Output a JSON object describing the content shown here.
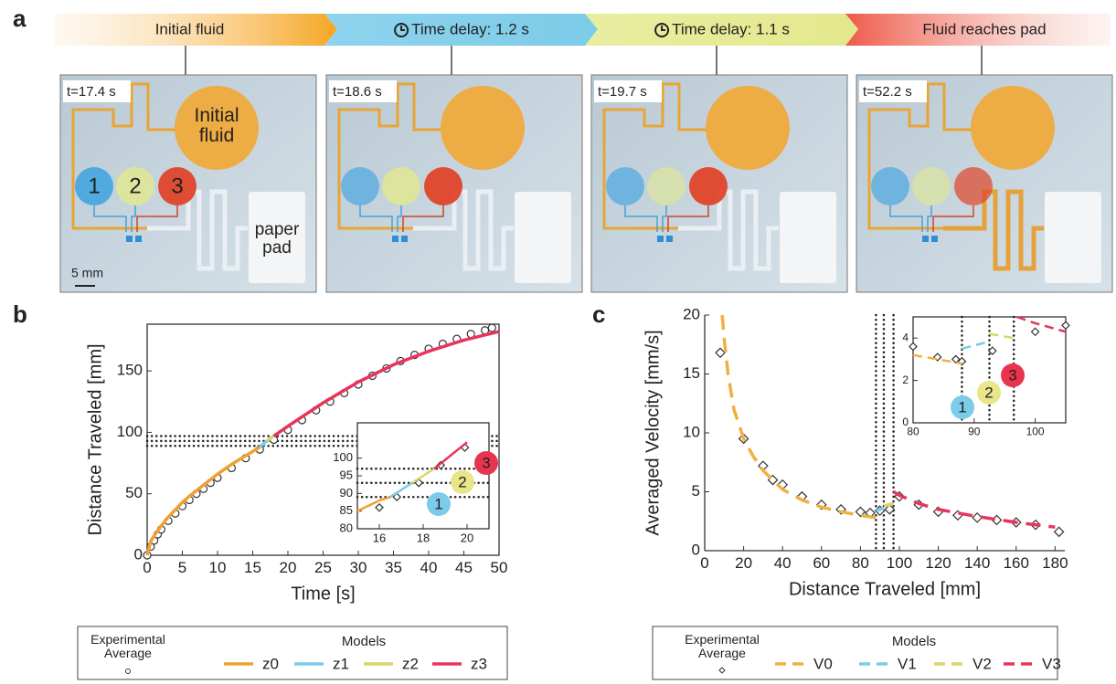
{
  "panel_labels": [
    "a",
    "b",
    "c"
  ],
  "timeline": [
    "Initial fluid",
    "Time delay: 1.2 s",
    "Time delay: 1.1 s",
    "Fluid reaches pad"
  ],
  "photos": {
    "times": [
      "t=17.4 s",
      "t=18.6 s",
      "t=19.7 s",
      "t=52.2 s"
    ],
    "reservoir_label": "Initial fluid",
    "well_labels": [
      "1",
      "2",
      "3"
    ],
    "pad_label": "paper pad",
    "scale_bar": "5 mm"
  },
  "chart_data": [
    {
      "type": "line",
      "xlabel": "Time [s]",
      "ylabel": "Distance Traveled [mm]",
      "xlim": [
        0,
        50
      ],
      "ylim": [
        0,
        188
      ],
      "xticks": [
        0,
        5,
        10,
        15,
        20,
        25,
        30,
        35,
        40,
        45,
        50
      ],
      "yticks": [
        0,
        50,
        100,
        150
      ],
      "frame": true,
      "hlines": [
        89,
        93,
        97
      ],
      "legend_title": "Models",
      "series": [
        {
          "name": "Experimental Average",
          "marker": "circle",
          "color": "#333333",
          "x": [
            0,
            0.5,
            1,
            1.5,
            2,
            3,
            4,
            5,
            6,
            7,
            8,
            9,
            10,
            12,
            14,
            16,
            18,
            20,
            22,
            24,
            26,
            28,
            30,
            32,
            34,
            36,
            38,
            40,
            42,
            44,
            46,
            48,
            49
          ],
          "values": [
            0,
            7,
            12,
            17,
            21,
            28,
            34,
            40,
            45,
            50,
            54,
            59,
            63,
            71,
            79,
            86,
            94,
            102,
            110,
            118,
            125,
            132,
            139,
            146,
            152,
            158,
            163,
            168,
            172,
            176,
            180,
            183,
            185
          ]
        },
        {
          "name": "z0",
          "color": "#f0a030",
          "style": "solid",
          "x": [
            0,
            0.5,
            1,
            2,
            3,
            4,
            5,
            6,
            8,
            10,
            12,
            14,
            16
          ],
          "values": [
            0,
            11,
            16,
            24,
            31,
            37,
            43,
            48,
            57,
            66,
            74,
            81,
            88
          ]
        },
        {
          "name": "z1",
          "color": "#7ccbe8",
          "style": "solid",
          "x": [
            16,
            17
          ],
          "values": [
            88,
            93
          ]
        },
        {
          "name": "z2",
          "color": "#d9d66a",
          "style": "solid",
          "x": [
            17,
            18
          ],
          "values": [
            93,
            97
          ]
        },
        {
          "name": "z3",
          "color": "#e8345a",
          "style": "solid",
          "x": [
            18,
            20,
            25,
            30,
            35,
            40,
            45,
            50
          ],
          "values": [
            97,
            105,
            124,
            141,
            155,
            166,
            175,
            182
          ]
        }
      ]
    },
    {
      "type": "line",
      "xlim": [
        15,
        21
      ],
      "ylim": [
        80,
        110
      ],
      "xticks": [
        16,
        18,
        20
      ],
      "yticks": [
        80,
        85,
        90,
        95,
        100
      ],
      "frame": true,
      "hlines": [
        89,
        93,
        97
      ],
      "series": [
        {
          "marker": "diamond",
          "color": "#333333",
          "x": [
            16,
            16.8,
            17.8,
            18.8,
            19.9
          ],
          "values": [
            86,
            89,
            93,
            98,
            103
          ]
        },
        {
          "color": "#f0a030",
          "style": "solid",
          "x": [
            15,
            15.5,
            16,
            16.5
          ],
          "values": [
            85,
            86.5,
            88,
            89
          ]
        },
        {
          "color": "#7ccbe8",
          "style": "solid",
          "x": [
            16.5,
            17,
            17.5
          ],
          "values": [
            89,
            91,
            93
          ]
        },
        {
          "color": "#d9d66a",
          "style": "solid",
          "x": [
            17.5,
            18,
            18.5
          ],
          "values": [
            93,
            95,
            97
          ]
        },
        {
          "color": "#e8345a",
          "style": "solid",
          "x": [
            18.5,
            19,
            19.5,
            20
          ],
          "values": [
            97,
            99.5,
            102,
            104.5
          ]
        }
      ],
      "annotations": [
        {
          "text": "1",
          "color": "#7ccbe8"
        },
        {
          "text": "2",
          "color": "#e8e58a"
        },
        {
          "text": "3",
          "color": "#e8344e"
        }
      ]
    },
    {
      "type": "line",
      "xlabel": "Distance Traveled [mm]",
      "ylabel": "Averaged Velocity [mm/s]",
      "xlim": [
        0,
        185
      ],
      "ylim": [
        0,
        20
      ],
      "xticks": [
        0,
        20,
        40,
        60,
        80,
        100,
        120,
        140,
        160,
        180
      ],
      "yticks": [
        0,
        5,
        10,
        15,
        20
      ],
      "frame": false,
      "vlines": [
        88,
        92,
        97
      ],
      "legend_title": "Models",
      "series": [
        {
          "name": "Experimental Average",
          "marker": "diamond",
          "color": "#333333",
          "x": [
            8,
            20,
            30,
            35,
            40,
            50,
            60,
            70,
            80,
            85,
            90,
            95,
            100,
            110,
            120,
            130,
            140,
            150,
            160,
            170,
            182
          ],
          "values": [
            16.8,
            9.5,
            7.2,
            6,
            5.6,
            4.6,
            3.9,
            3.5,
            3.3,
            3.2,
            3.4,
            3.5,
            4.6,
            3.9,
            3.3,
            3.0,
            2.8,
            2.6,
            2.4,
            2.2,
            1.6
          ]
        },
        {
          "name": "V0",
          "color": "#f0b040",
          "style": "dashed",
          "x": [
            9,
            10,
            12,
            15,
            20,
            25,
            30,
            40,
            50,
            60,
            70,
            80,
            88
          ],
          "values": [
            20,
            18,
            15,
            12,
            9.5,
            8,
            6.8,
            5.2,
            4.3,
            3.7,
            3.3,
            3,
            2.8
          ]
        },
        {
          "name": "V1",
          "color": "#7ccbe8",
          "style": "dashed",
          "x": [
            88,
            92
          ],
          "values": [
            3.4,
            3.6
          ]
        },
        {
          "name": "V2",
          "color": "#d9d66a",
          "style": "dashed",
          "x": [
            92,
            97
          ],
          "values": [
            3.8,
            4
          ]
        },
        {
          "name": "V3",
          "color": "#e8345a",
          "style": "dashed",
          "x": [
            97,
            100,
            110,
            120,
            140,
            160,
            180
          ],
          "values": [
            5,
            4.7,
            4,
            3.5,
            2.9,
            2.4,
            2
          ]
        }
      ]
    },
    {
      "type": "line",
      "xlim": [
        80,
        105
      ],
      "ylim": [
        0,
        5
      ],
      "xticks": [
        80,
        90,
        100
      ],
      "yticks": [
        0,
        2,
        4
      ],
      "frame": true,
      "vlines": [
        88,
        92.5,
        96.5
      ],
      "series": [
        {
          "marker": "diamond",
          "color": "#333333",
          "x": [
            80,
            84,
            87,
            88,
            93,
            100,
            105
          ],
          "values": [
            3.6,
            3.1,
            3.0,
            2.9,
            3.4,
            4.3,
            4.6
          ]
        },
        {
          "color": "#f0b040",
          "style": "dashed",
          "x": [
            80,
            84,
            88
          ],
          "values": [
            3.2,
            3,
            2.8
          ]
        },
        {
          "color": "#7ccbe8",
          "style": "dashed",
          "x": [
            88,
            92
          ],
          "values": [
            3.5,
            3.8
          ]
        },
        {
          "color": "#d9d66a",
          "style": "dashed",
          "x": [
            92.5,
            96.5
          ],
          "values": [
            4.2,
            4
          ]
        },
        {
          "color": "#e8345a",
          "style": "dashed",
          "x": [
            97,
            100,
            105
          ],
          "values": [
            5,
            4.7,
            4.3
          ]
        }
      ],
      "annotations": [
        {
          "text": "1",
          "color": "#7ccbe8"
        },
        {
          "text": "2",
          "color": "#e8e58a"
        },
        {
          "text": "3",
          "color": "#e8344e"
        }
      ]
    }
  ]
}
